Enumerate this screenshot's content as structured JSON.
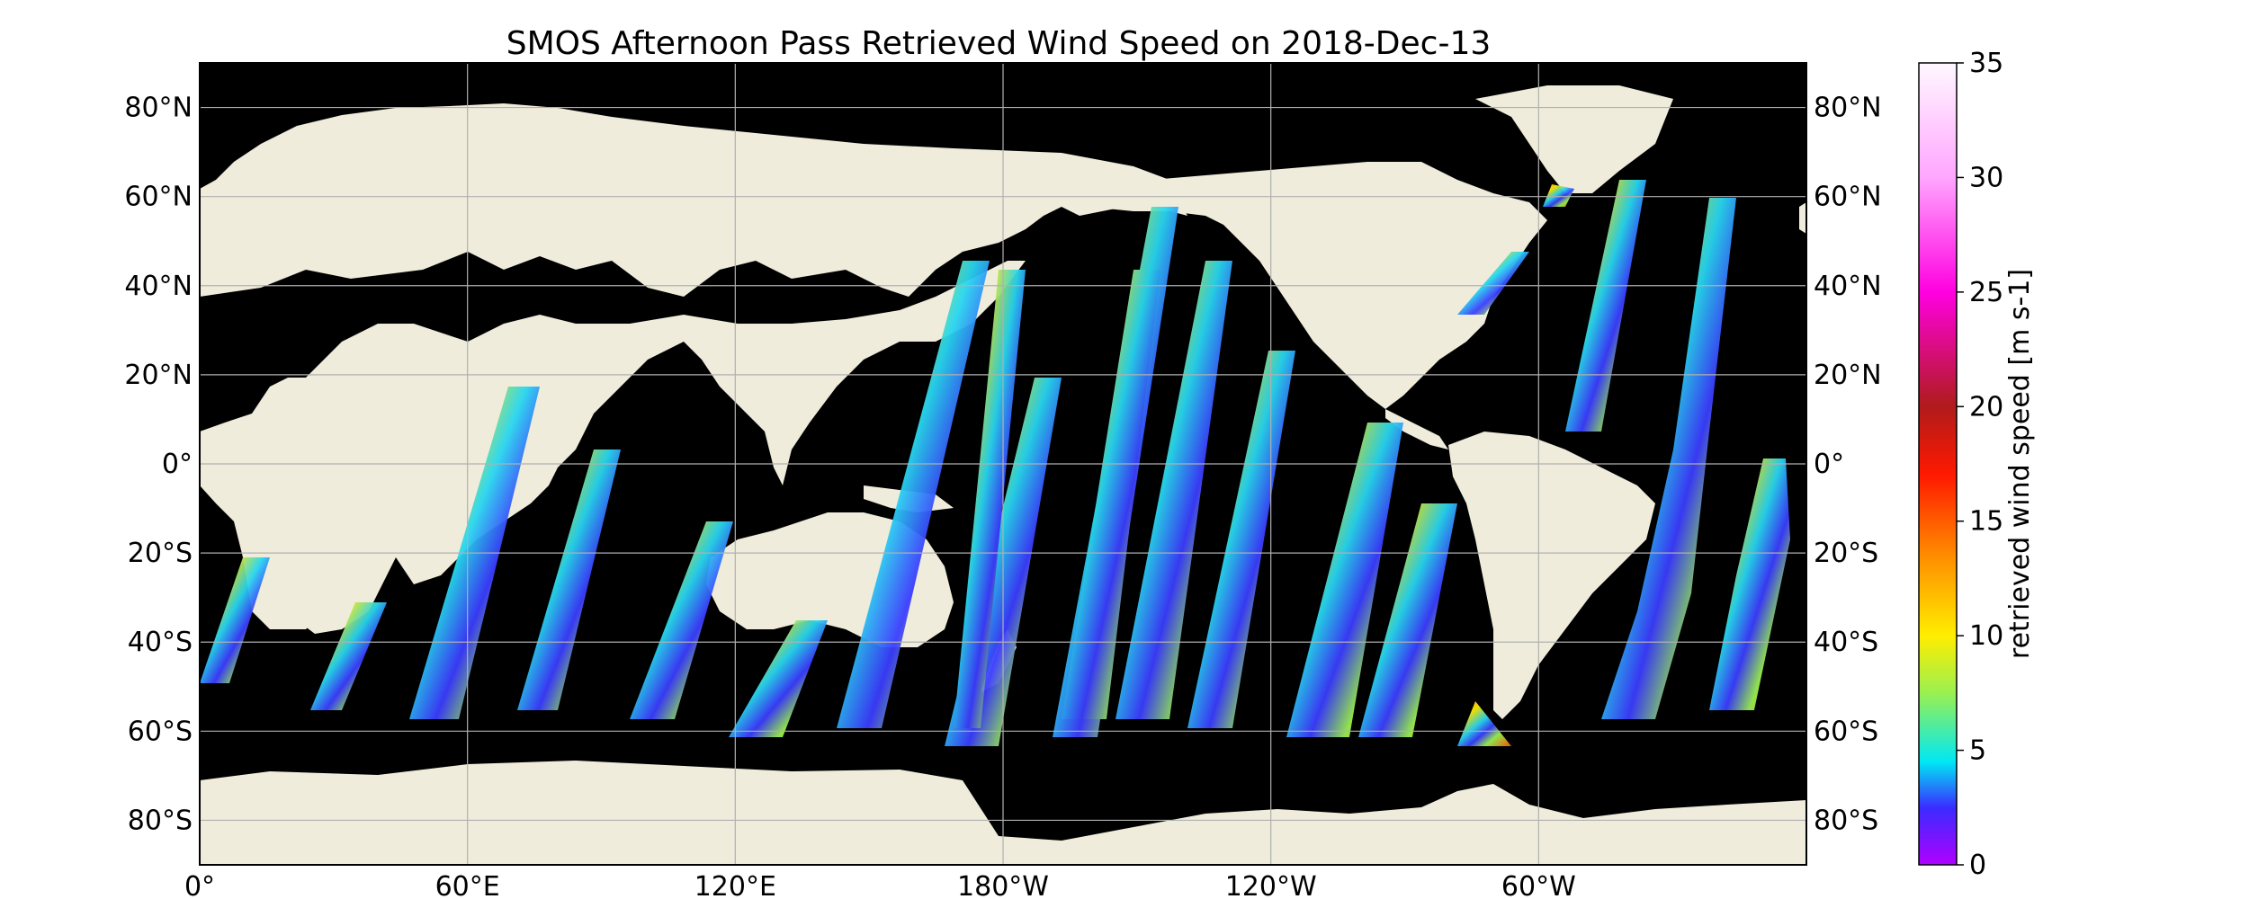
{
  "title": "SMOS Afternoon Pass Retrieved Wind Speed on 2018-Dec-13",
  "map": {
    "lat_labels": [
      "80°N",
      "60°N",
      "40°N",
      "20°N",
      "0°",
      "20°S",
      "40°S",
      "60°S",
      "80°S"
    ],
    "lon_labels": [
      "0°",
      "60°E",
      "120°E",
      "180°W",
      "120°W",
      "60°W"
    ],
    "ocean_color": "#000000",
    "land_color": "#efecdc",
    "grid": true,
    "projection": "plate-carree"
  },
  "colorbar": {
    "label": "retrieved wind speed [m s-1]",
    "min": 0,
    "max": 35,
    "ticks": [
      "0",
      "5",
      "10",
      "15",
      "20",
      "25",
      "30",
      "35"
    ],
    "stops": [
      {
        "value": 0,
        "color": "#b000ff"
      },
      {
        "value": 2.5,
        "color": "#3a2cff"
      },
      {
        "value": 4.5,
        "color": "#00e8f4"
      },
      {
        "value": 7.5,
        "color": "#9af050"
      },
      {
        "value": 10,
        "color": "#ffee00"
      },
      {
        "value": 13.5,
        "color": "#ff8c00"
      },
      {
        "value": 17,
        "color": "#ff1a00"
      },
      {
        "value": 20,
        "color": "#b01b1b"
      },
      {
        "value": 25,
        "color": "#ff00e0"
      },
      {
        "value": 30,
        "color": "#ffa6ff"
      },
      {
        "value": 35,
        "color": "#fff8ff"
      }
    ]
  }
}
